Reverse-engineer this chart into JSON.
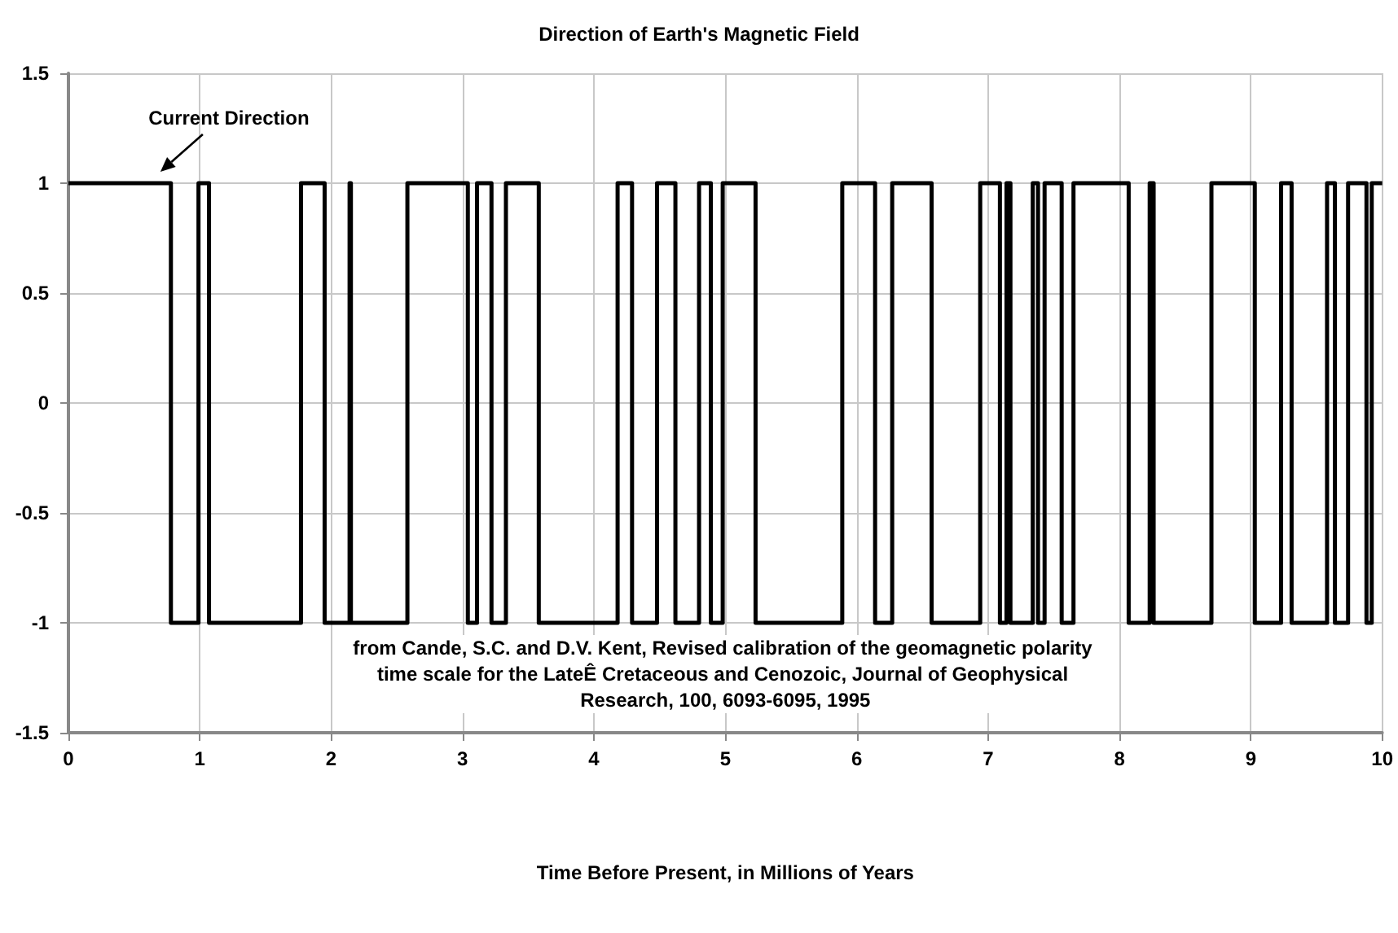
{
  "chart_data": {
    "type": "step",
    "title": "Direction of Earth's Magnetic Field",
    "xlabel": "Time Before Present, in Millions of Years",
    "x": [
      0,
      0.78,
      0.99,
      1.07,
      1.77,
      1.95,
      2.14,
      2.15,
      2.58,
      3.04,
      3.11,
      3.22,
      3.33,
      3.58,
      4.18,
      4.29,
      4.48,
      4.62,
      4.8,
      4.89,
      4.98,
      5.23,
      5.89,
      6.14,
      6.27,
      6.57,
      6.94,
      7.09,
      7.14,
      7.17,
      7.34,
      7.38,
      7.43,
      7.56,
      7.65,
      8.07,
      8.23,
      8.26,
      8.7,
      9.03,
      9.23,
      9.31,
      9.58,
      9.64,
      9.74,
      9.88,
      9.92,
      10
    ],
    "values": [
      1,
      -1,
      1,
      -1,
      1,
      -1,
      1,
      -1,
      1,
      -1,
      1,
      -1,
      1,
      -1,
      1,
      -1,
      1,
      -1,
      1,
      -1,
      1,
      -1,
      1,
      -1,
      1,
      -1,
      1,
      -1,
      1,
      -1,
      1,
      -1,
      1,
      -1,
      1,
      -1,
      1,
      -1,
      1,
      -1,
      1,
      -1,
      1,
      -1,
      1,
      -1,
      1,
      1
    ],
    "color": "#000000",
    "xlim": [
      0,
      10
    ],
    "xticks": [
      0,
      1,
      2,
      3,
      4,
      5,
      6,
      7,
      8,
      9,
      10
    ],
    "ylim": [
      -1.5,
      1.5
    ],
    "yticks": [
      -1.5,
      -1,
      -0.5,
      0,
      0.5,
      1,
      1.5
    ],
    "grid": true,
    "marker": "none",
    "line_style": "solid",
    "annotations": [
      {
        "text": "Current Direction",
        "x": 0.7,
        "y": 1
      },
      "from Cande, S.C. and D.V. Kent, Revised calibration of the geomagnetic polarity time scale for the LateÊ Cretaceous and Cenozoic, Journal of Geophysical Research, 100, 6093-6095, 1995"
    ]
  }
}
